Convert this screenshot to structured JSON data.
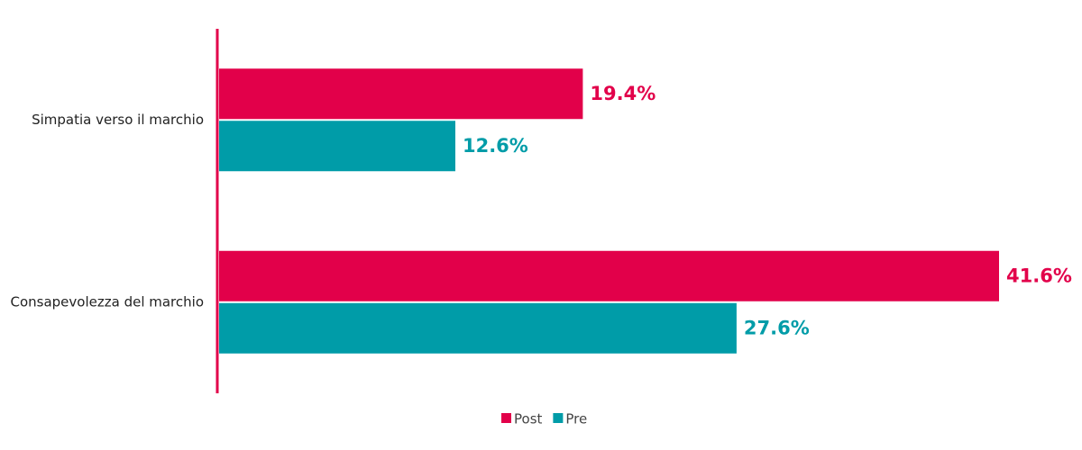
{
  "chart_data": {
    "type": "hbar",
    "categories": [
      "Simpatia verso il marchio",
      "Consapevolezza del marchio"
    ],
    "series": [
      {
        "name": "Post",
        "color": "#e2004a",
        "values": [
          19.4,
          41.6
        ],
        "value_labels": [
          "19.4%",
          "41.6%"
        ]
      },
      {
        "name": "Pre",
        "color": "#009ca8",
        "values": [
          12.6,
          27.6
        ],
        "value_labels": [
          "12.6%",
          "27.6%"
        ]
      }
    ],
    "legend": "bottom"
  }
}
